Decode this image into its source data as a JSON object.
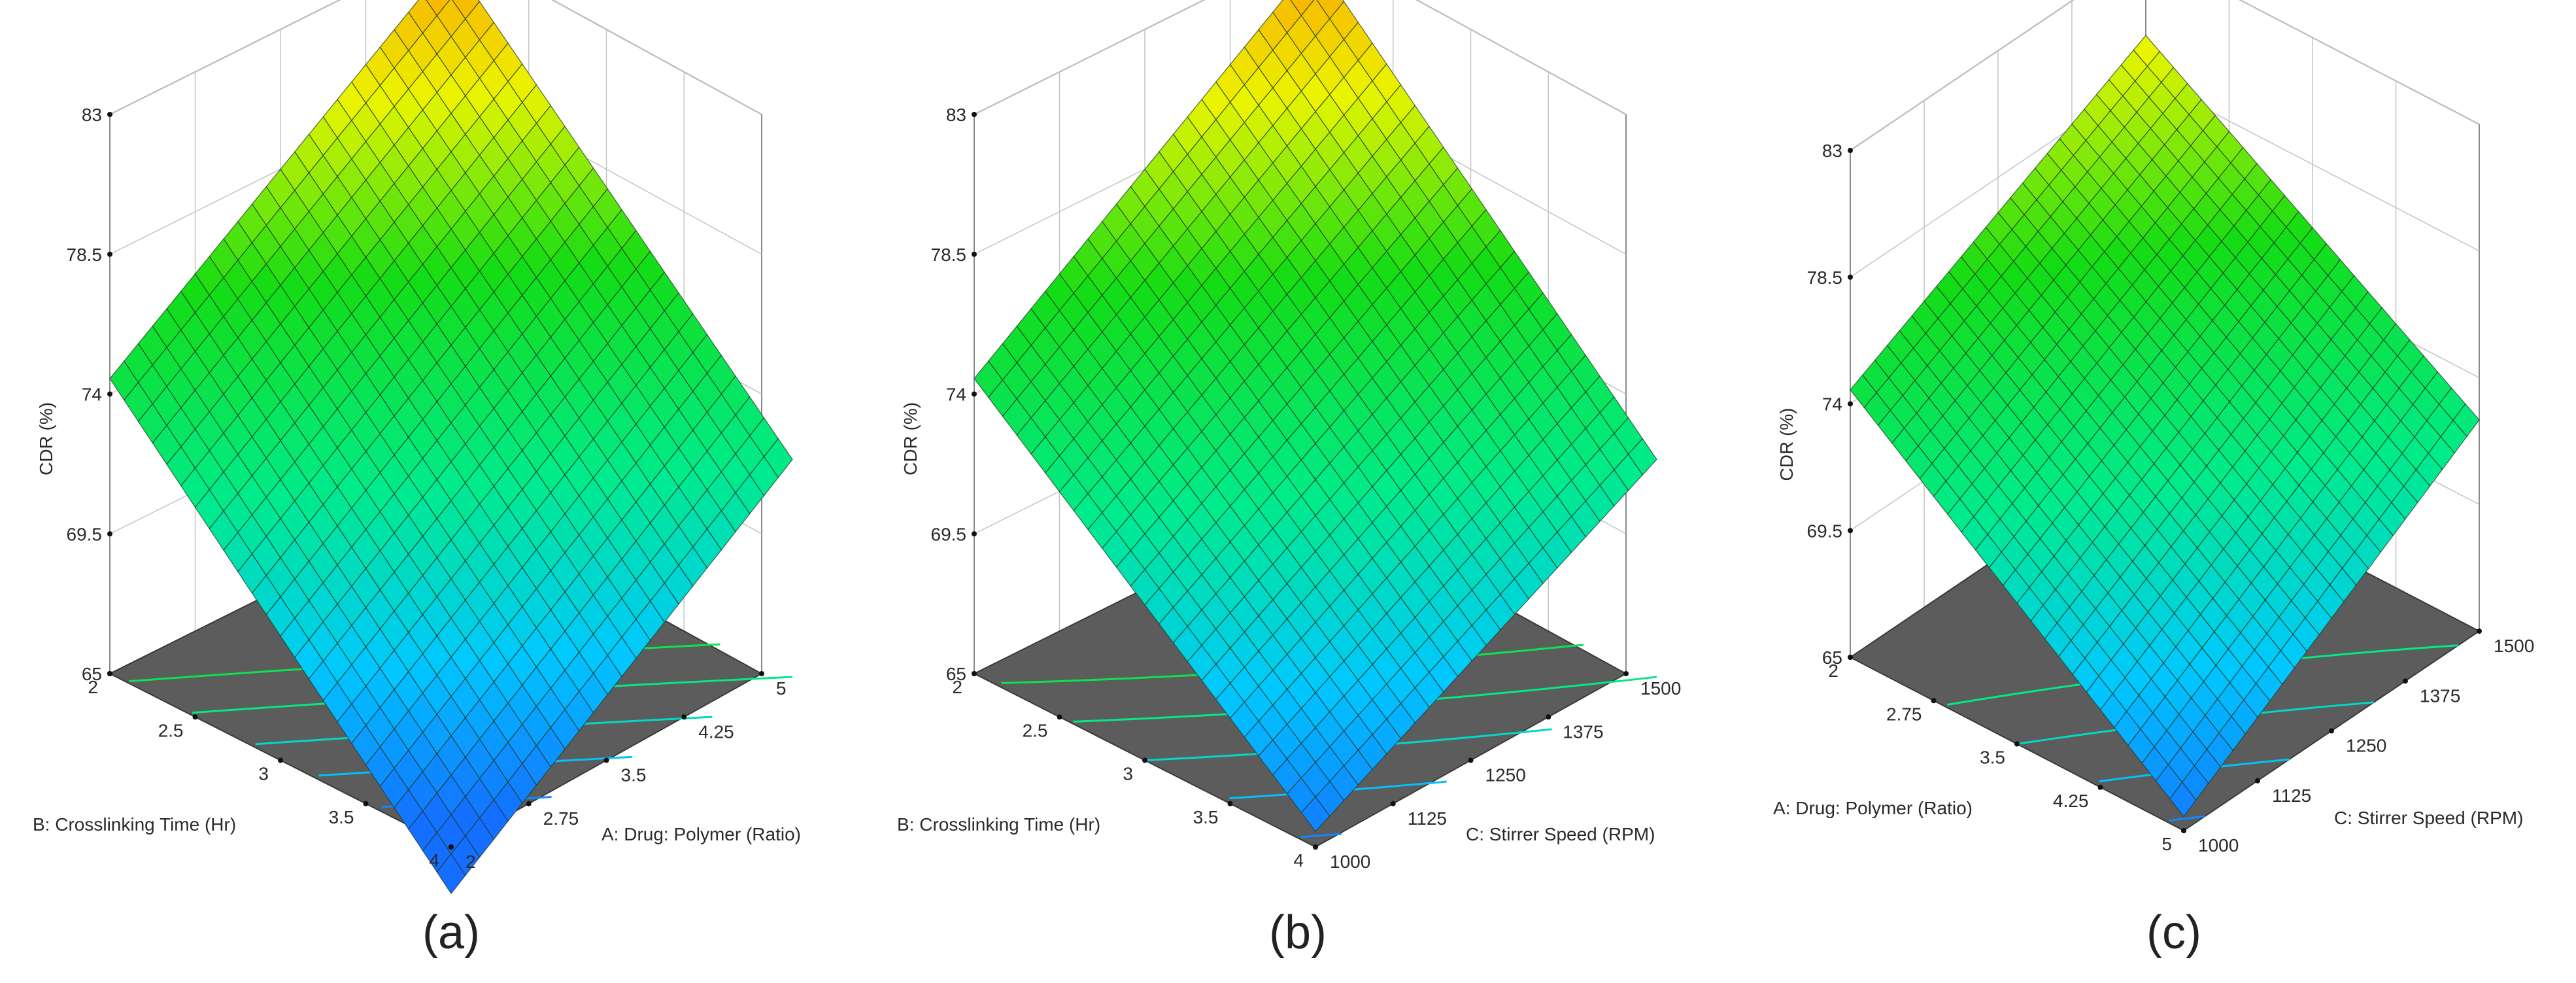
{
  "chart_data": [
    {
      "type": "surface",
      "panel_label": "(a)",
      "zlabel": "CDR (%)",
      "z_ticks": [
        "65",
        "69.5",
        "74",
        "78.5",
        "83"
      ],
      "zlim": [
        65,
        83
      ],
      "left_axis": {
        "label": "B: Crosslinking Time (Hr)",
        "ticks": [
          "2",
          "2.5",
          "3",
          "3.5",
          "4"
        ],
        "range": [
          2,
          4
        ]
      },
      "right_axis": {
        "label": "A: Drug: Polymer (Ratio)",
        "ticks": [
          "2",
          "2.75",
          "3.5",
          "4.25",
          "5"
        ],
        "range": [
          2,
          5
        ]
      },
      "corner_values": {
        "front": 63.5,
        "left": 74.5,
        "right": 72.0,
        "back": 82.5
      },
      "contour_levels": [
        66,
        68,
        70,
        72,
        74
      ]
    },
    {
      "type": "surface",
      "panel_label": "(b)",
      "zlabel": "CDR (%)",
      "z_ticks": [
        "65",
        "69.5",
        "74",
        "78.5",
        "83"
      ],
      "zlim": [
        65,
        83
      ],
      "left_axis": {
        "label": "B: Crosslinking Time (Hr)",
        "ticks": [
          "2",
          "2.5",
          "3",
          "3.5",
          "4"
        ],
        "range": [
          2,
          4
        ]
      },
      "right_axis": {
        "label": "C: Stirrer Speed (RPM)",
        "ticks": [
          "1000",
          "1125",
          "1250",
          "1375",
          "1500"
        ],
        "range": [
          1000,
          1500
        ]
      },
      "corner_values": {
        "front": 65.5,
        "left": 74.5,
        "right": 72.0,
        "back": 82.5
      },
      "contour_levels": [
        66,
        68,
        70,
        72,
        74
      ]
    },
    {
      "type": "surface",
      "panel_label": "(c)",
      "zlabel": "CDR (%)",
      "z_ticks": [
        "65",
        "69.5",
        "74",
        "78.5",
        "83"
      ],
      "zlim": [
        65,
        83
      ],
      "left_axis": {
        "label": "A: Drug: Polymer (Ratio)",
        "ticks": [
          "2",
          "2.75",
          "3.5",
          "4.25",
          "5"
        ],
        "range": [
          2,
          5
        ]
      },
      "right_axis": {
        "label": "C: Stirrer Speed (RPM)",
        "ticks": [
          "1000",
          "1125",
          "1250",
          "1375",
          "1500"
        ],
        "range": [
          1000,
          1500
        ]
      },
      "corner_values": {
        "front": 65.5,
        "left": 74.5,
        "right": 72.5,
        "back": 80.0
      },
      "contour_levels": [
        66,
        68,
        70,
        72
      ]
    }
  ]
}
